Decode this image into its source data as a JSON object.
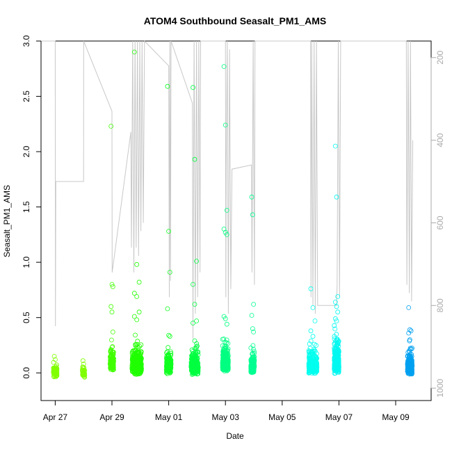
{
  "chart_data": {
    "type": "scatter",
    "title": "ATOM4 Southbound Seasalt_PM1_AMS",
    "xlabel": "Date",
    "ylabel": "Seasalt_PM1_AMS",
    "x_range": [
      "2018-04-26T12:00",
      "2018-05-10T06:00"
    ],
    "ylim": [
      -0.25,
      3.0
    ],
    "x_ticks": [
      {
        "label": "Apr 27",
        "date": "2018-04-27"
      },
      {
        "label": "Apr 29",
        "date": "2018-04-29"
      },
      {
        "label": "May 01",
        "date": "2018-05-01"
      },
      {
        "label": "May 03",
        "date": "2018-05-03"
      },
      {
        "label": "May 05",
        "date": "2018-05-05"
      },
      {
        "label": "May 07",
        "date": "2018-05-07"
      },
      {
        "label": "May 09",
        "date": "2018-05-09"
      }
    ],
    "y_ticks": [
      "0.0",
      "0.5",
      "1.0",
      "1.5",
      "2.0",
      "2.5",
      "3.0"
    ],
    "secondary_axis": {
      "series": "altitude (gray line)",
      "range": [
        1030,
        160
      ],
      "ticks": [
        "200",
        "400",
        "600",
        "800",
        "1000"
      ]
    },
    "clusters": [
      {
        "center": "2018-04-27T00:00",
        "color": "#80ff00",
        "count": 70,
        "spread_hours": 1.5,
        "base": 0.02,
        "scatter": 0.06,
        "outliers": [
          0.15,
          0.12
        ]
      },
      {
        "center": "2018-04-28T00:00",
        "color": "#80ff00",
        "count": 40,
        "spread_hours": 1.0,
        "base": 0.01,
        "scatter": 0.04,
        "outliers": [
          0.11,
          0.08
        ]
      },
      {
        "center": "2018-04-29T00:00",
        "color": "#40ff00",
        "count": 150,
        "spread_hours": 1.5,
        "base": 0.08,
        "scatter": 0.14,
        "outliers": [
          2.23,
          0.8,
          0.78,
          0.6,
          0.55,
          0.37
        ]
      },
      {
        "center": "2018-04-29T21:00",
        "color": "#20ff00",
        "count": 300,
        "spread_hours": 4.0,
        "base": 0.04,
        "scatter": 0.18,
        "outliers": [
          2.9,
          0.98,
          0.82,
          0.72,
          0.69,
          0.55,
          0.51,
          0.48
        ]
      },
      {
        "center": "2018-05-01T00:00",
        "color": "#10ff20",
        "count": 160,
        "spread_hours": 2.0,
        "base": 0.05,
        "scatter": 0.12,
        "outliers": [
          2.59,
          1.28,
          0.91,
          0.58,
          0.34,
          0.33
        ]
      },
      {
        "center": "2018-05-01T22:00",
        "color": "#00ff40",
        "count": 240,
        "spread_hours": 3.0,
        "base": 0.04,
        "scatter": 0.14,
        "outliers": [
          2.58,
          1.93,
          1.01,
          0.8,
          0.62,
          0.47,
          0.45,
          0.29
        ]
      },
      {
        "center": "2018-05-03T00:00",
        "color": "#00ff80",
        "count": 260,
        "spread_hours": 2.5,
        "base": 0.07,
        "scatter": 0.15,
        "outliers": [
          2.77,
          2.24,
          1.47,
          1.3,
          1.27,
          1.25,
          0.51,
          0.49,
          0.44
        ]
      },
      {
        "center": "2018-05-03T23:00",
        "color": "#00ff90",
        "count": 150,
        "spread_hours": 1.5,
        "base": 0.05,
        "scatter": 0.12,
        "outliers": [
          1.59,
          1.43,
          0.62,
          0.52,
          0.4,
          0.37
        ]
      },
      {
        "center": "2018-05-06T02:00",
        "color": "#00ffee",
        "count": 260,
        "spread_hours": 3.5,
        "base": 0.05,
        "scatter": 0.14,
        "outliers": [
          0.76,
          0.59,
          0.47,
          0.38,
          0.33
        ]
      },
      {
        "center": "2018-05-06T22:00",
        "color": "#00f8f0",
        "count": 300,
        "spread_hours": 2.0,
        "base": 0.05,
        "scatter": 0.2,
        "outliers": [
          2.05,
          1.59,
          0.69,
          0.64,
          0.6,
          0.55,
          0.49,
          0.47
        ]
      },
      {
        "center": "2018-05-09T12:00",
        "color": "#00a0f0",
        "count": 260,
        "spread_hours": 2.0,
        "base": 0.04,
        "scatter": 0.12,
        "outliers": [
          0.59,
          0.39,
          0.38,
          0.36,
          0.3
        ]
      }
    ],
    "altitude_line": [
      [
        "2018-04-26T12:00",
        160
      ],
      [
        "2018-04-27T00:00",
        160
      ],
      [
        "2018-04-27T00:10",
        850
      ],
      [
        "2018-04-27T00:30",
        500
      ],
      [
        "2018-04-28T00:00",
        500
      ],
      [
        "2018-04-28T00:05",
        160
      ],
      [
        "2018-04-29T00:00",
        330
      ],
      [
        "2018-04-29T00:10",
        720
      ],
      [
        "2018-04-29T16:00",
        380
      ],
      [
        "2018-04-29T16:30",
        660
      ],
      [
        "2018-04-29T17:30",
        160
      ],
      [
        "2018-04-29T18:30",
        720
      ],
      [
        "2018-04-29T19:30",
        160
      ],
      [
        "2018-04-29T20:30",
        660
      ],
      [
        "2018-04-29T21:30",
        160
      ],
      [
        "2018-04-29T22:30",
        680
      ],
      [
        "2018-04-29T23:30",
        160
      ],
      [
        "2018-04-30T00:30",
        620
      ],
      [
        "2018-04-30T01:30",
        160
      ],
      [
        "2018-04-30T02:30",
        600
      ],
      [
        "2018-04-30T03:30",
        160
      ],
      [
        "2018-05-01T00:00",
        220
      ],
      [
        "2018-05-01T00:30",
        780
      ],
      [
        "2018-05-01T01:00",
        160
      ],
      [
        "2018-05-01T01:30",
        740
      ],
      [
        "2018-05-01T02:00",
        160
      ],
      [
        "2018-05-01T20:00",
        310
      ],
      [
        "2018-05-01T20:30",
        880
      ],
      [
        "2018-05-01T21:30",
        160
      ],
      [
        "2018-05-01T22:30",
        820
      ],
      [
        "2018-05-01T23:30",
        160
      ],
      [
        "2018-05-02T00:30",
        780
      ],
      [
        "2018-05-02T01:30",
        160
      ],
      [
        "2018-05-02T02:30",
        720
      ],
      [
        "2018-05-02T03:00",
        160
      ],
      [
        "2018-05-03T00:00",
        160
      ],
      [
        "2018-05-03T00:20",
        780
      ],
      [
        "2018-05-03T00:40",
        470
      ],
      [
        "2018-05-03T01:30",
        160
      ],
      [
        "2018-05-03T02:30",
        820
      ],
      [
        "2018-05-03T03:30",
        180
      ],
      [
        "2018-05-03T04:30",
        760
      ],
      [
        "2018-05-03T05:30",
        470
      ],
      [
        "2018-05-03T22:00",
        460
      ],
      [
        "2018-05-03T22:30",
        720
      ],
      [
        "2018-05-03T23:30",
        160
      ],
      [
        "2018-05-04T00:30",
        750
      ],
      [
        "2018-05-04T01:00",
        160
      ],
      [
        "2018-05-06T00:00",
        160
      ],
      [
        "2018-05-06T00:20",
        780
      ],
      [
        "2018-05-06T01:00",
        160
      ],
      [
        "2018-05-06T02:00",
        800
      ],
      [
        "2018-05-06T03:00",
        160
      ],
      [
        "2018-05-06T04:00",
        820
      ],
      [
        "2018-05-06T05:00",
        160
      ],
      [
        "2018-05-06T06:00",
        800
      ],
      [
        "2018-05-06T22:00",
        800
      ],
      [
        "2018-05-06T22:30",
        750
      ],
      [
        "2018-05-06T23:30",
        160
      ],
      [
        "2018-05-07T00:30",
        780
      ],
      [
        "2018-05-07T01:30",
        160
      ],
      [
        "2018-05-09T09:00",
        160
      ],
      [
        "2018-05-09T09:30",
        750
      ],
      [
        "2018-05-09T10:30",
        160
      ],
      [
        "2018-05-09T11:30",
        770
      ],
      [
        "2018-05-09T12:30",
        160
      ],
      [
        "2018-05-09T13:30",
        790
      ],
      [
        "2018-05-09T14:30",
        400
      ]
    ]
  }
}
